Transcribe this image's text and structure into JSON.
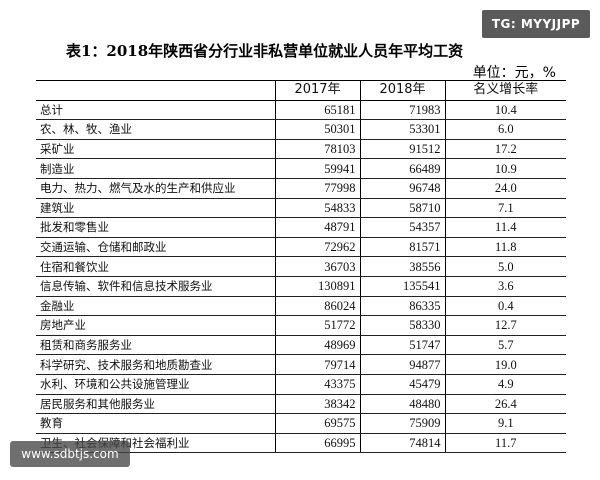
{
  "badge": "TG: MYYJJPP",
  "title": "表1：2018年陕西省分行业非私营单位就业人员年平均工资",
  "unit": "单位：元，%",
  "table": {
    "headers": [
      "",
      "2017年",
      "2018年",
      "名义增长率"
    ],
    "rows": [
      {
        "name": "总计",
        "y2017": "65181",
        "y2018": "71983",
        "growth": "10.4"
      },
      {
        "name": "农、林、牧、渔业",
        "y2017": "50301",
        "y2018": "53301",
        "growth": "6.0"
      },
      {
        "name": "采矿业",
        "y2017": "78103",
        "y2018": "91512",
        "growth": "17.2"
      },
      {
        "name": "制造业",
        "y2017": "59941",
        "y2018": "66489",
        "growth": "10.9"
      },
      {
        "name": "电力、热力、燃气及水的生产和供应业",
        "y2017": "77998",
        "y2018": "96748",
        "growth": "24.0"
      },
      {
        "name": "建筑业",
        "y2017": "54833",
        "y2018": "58710",
        "growth": "7.1"
      },
      {
        "name": "批发和零售业",
        "y2017": "48791",
        "y2018": "54357",
        "growth": "11.4"
      },
      {
        "name": "交通运输、仓储和邮政业",
        "y2017": "72962",
        "y2018": "81571",
        "growth": "11.8"
      },
      {
        "name": "住宿和餐饮业",
        "y2017": "36703",
        "y2018": "38556",
        "growth": "5.0"
      },
      {
        "name": "信息传输、软件和信息技术服务业",
        "y2017": "130891",
        "y2018": "135541",
        "growth": "3.6"
      },
      {
        "name": "金融业",
        "y2017": "86024",
        "y2018": "86335",
        "growth": "0.4"
      },
      {
        "name": "房地产业",
        "y2017": "51772",
        "y2018": "58330",
        "growth": "12.7"
      },
      {
        "name": "租赁和商务服务业",
        "y2017": "48969",
        "y2018": "51747",
        "growth": "5.7"
      },
      {
        "name": "科学研究、技术服务和地质勘查业",
        "y2017": "79714",
        "y2018": "94877",
        "growth": "19.0"
      },
      {
        "name": "水利、环境和公共设施管理业",
        "y2017": "43375",
        "y2018": "45479",
        "growth": "4.9"
      },
      {
        "name": "居民服务和其他服务业",
        "y2017": "38342",
        "y2018": "48480",
        "growth": "26.4"
      },
      {
        "name": "教育",
        "y2017": "69575",
        "y2018": "75909",
        "growth": "9.1"
      },
      {
        "name": "卫生、社会保障和社会福利业",
        "y2017": "66995",
        "y2018": "74814",
        "growth": "11.7"
      }
    ]
  },
  "watermark": "www.sdbtjs.com"
}
